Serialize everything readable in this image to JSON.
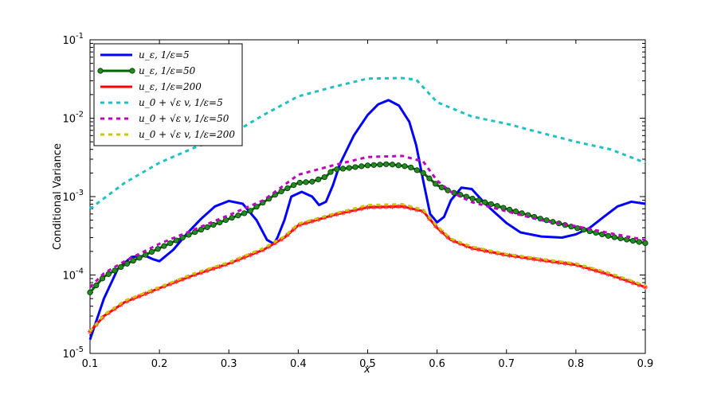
{
  "chart_data": {
    "type": "line",
    "xlabel": "x",
    "ylabel": "Conditional Variance",
    "xlim": [
      0.1,
      0.9
    ],
    "ylim": [
      1e-05,
      0.1
    ],
    "yscale": "log",
    "legend_position": "top-left",
    "x_ticks": [
      "0.1",
      "0.2",
      "0.3",
      "0.4",
      "0.5",
      "0.6",
      "0.7",
      "0.8",
      "0.9"
    ],
    "y_ticks": [
      {
        "base": "10",
        "exp": "-5"
      },
      {
        "base": "10",
        "exp": "-4"
      },
      {
        "base": "10",
        "exp": "-3"
      },
      {
        "base": "10",
        "exp": "-2"
      },
      {
        "base": "10",
        "exp": "-1"
      }
    ],
    "series": [
      {
        "name": "u_ε, 1/ε=5",
        "color": "#0000ff",
        "style": "solid",
        "marker": "none",
        "points": [
          [
            0.1,
            1.5e-05
          ],
          [
            0.12,
            5e-05
          ],
          [
            0.14,
            0.00012
          ],
          [
            0.16,
            0.00017
          ],
          [
            0.18,
            0.000175
          ],
          [
            0.19,
            0.00016
          ],
          [
            0.2,
            0.00015
          ],
          [
            0.22,
            0.00021
          ],
          [
            0.24,
            0.00034
          ],
          [
            0.26,
            0.00052
          ],
          [
            0.28,
            0.00075
          ],
          [
            0.3,
            0.00088
          ],
          [
            0.32,
            0.00081
          ],
          [
            0.34,
            0.0005
          ],
          [
            0.355,
            0.00028
          ],
          [
            0.365,
            0.00025
          ],
          [
            0.37,
            0.0003
          ],
          [
            0.38,
            0.0005
          ],
          [
            0.39,
            0.001
          ],
          [
            0.405,
            0.00115
          ],
          [
            0.42,
            0.001
          ],
          [
            0.43,
            0.00078
          ],
          [
            0.44,
            0.00086
          ],
          [
            0.45,
            0.0014
          ],
          [
            0.46,
            0.0026
          ],
          [
            0.48,
            0.006
          ],
          [
            0.5,
            0.011
          ],
          [
            0.515,
            0.015
          ],
          [
            0.53,
            0.017
          ],
          [
            0.545,
            0.0145
          ],
          [
            0.56,
            0.009
          ],
          [
            0.57,
            0.0045
          ],
          [
            0.58,
            0.0016
          ],
          [
            0.59,
            0.0006
          ],
          [
            0.6,
            0.00047
          ],
          [
            0.61,
            0.00055
          ],
          [
            0.62,
            0.0009
          ],
          [
            0.635,
            0.0013
          ],
          [
            0.65,
            0.00125
          ],
          [
            0.67,
            0.0008
          ],
          [
            0.7,
            0.00046
          ],
          [
            0.72,
            0.00035
          ],
          [
            0.75,
            0.00031
          ],
          [
            0.78,
            0.0003
          ],
          [
            0.8,
            0.00033
          ],
          [
            0.82,
            0.0004
          ],
          [
            0.84,
            0.00055
          ],
          [
            0.86,
            0.00075
          ],
          [
            0.88,
            0.00086
          ],
          [
            0.9,
            0.00081
          ]
        ]
      },
      {
        "name": "u_ε, 1/ε=50",
        "color": "#006400",
        "style": "solid",
        "marker": "circle",
        "points": [
          [
            0.1,
            6e-05
          ],
          [
            0.12,
            9.5e-05
          ],
          [
            0.15,
            0.000135
          ],
          [
            0.2,
            0.00022
          ],
          [
            0.25,
            0.00035
          ],
          [
            0.3,
            0.00052
          ],
          [
            0.33,
            0.00065
          ],
          [
            0.35,
            0.00085
          ],
          [
            0.37,
            0.0011
          ],
          [
            0.4,
            0.0015
          ],
          [
            0.42,
            0.00155
          ],
          [
            0.44,
            0.0018
          ],
          [
            0.45,
            0.0022
          ],
          [
            0.47,
            0.0023
          ],
          [
            0.5,
            0.0025
          ],
          [
            0.53,
            0.0026
          ],
          [
            0.56,
            0.0024
          ],
          [
            0.58,
            0.002
          ],
          [
            0.6,
            0.0014
          ],
          [
            0.62,
            0.00115
          ],
          [
            0.65,
            0.00095
          ],
          [
            0.7,
            0.0007
          ],
          [
            0.75,
            0.00052
          ],
          [
            0.8,
            0.0004
          ],
          [
            0.85,
            0.00031
          ],
          [
            0.9,
            0.000255
          ]
        ]
      },
      {
        "name": "u_ε, 1/ε=200",
        "color": "#ff0000",
        "style": "solid",
        "marker": "star",
        "points": [
          [
            0.1,
            1.9e-05
          ],
          [
            0.12,
            3e-05
          ],
          [
            0.15,
            4.5e-05
          ],
          [
            0.2,
            6.8e-05
          ],
          [
            0.25,
            0.0001
          ],
          [
            0.3,
            0.00014
          ],
          [
            0.35,
            0.00021
          ],
          [
            0.38,
            0.0003
          ],
          [
            0.4,
            0.00043
          ],
          [
            0.45,
            0.00058
          ],
          [
            0.5,
            0.00073
          ],
          [
            0.55,
            0.00075
          ],
          [
            0.58,
            0.00065
          ],
          [
            0.6,
            0.0004
          ],
          [
            0.62,
            0.00028
          ],
          [
            0.65,
            0.00022
          ],
          [
            0.7,
            0.00018
          ],
          [
            0.75,
            0.000155
          ],
          [
            0.8,
            0.000135
          ],
          [
            0.85,
            0.0001
          ],
          [
            0.9,
            7e-05
          ]
        ]
      },
      {
        "name": "u_0 + √ε v, 1/ε=5",
        "color": "#20c0c0",
        "style": "dashed",
        "marker": "none",
        "points": [
          [
            0.1,
            0.0007
          ],
          [
            0.15,
            0.0015
          ],
          [
            0.2,
            0.0027
          ],
          [
            0.25,
            0.0042
          ],
          [
            0.3,
            0.006
          ],
          [
            0.35,
            0.011
          ],
          [
            0.4,
            0.019
          ],
          [
            0.45,
            0.025
          ],
          [
            0.5,
            0.032
          ],
          [
            0.55,
            0.0325
          ],
          [
            0.57,
            0.031
          ],
          [
            0.6,
            0.016
          ],
          [
            0.65,
            0.0105
          ],
          [
            0.7,
            0.0085
          ],
          [
            0.75,
            0.0065
          ],
          [
            0.8,
            0.005
          ],
          [
            0.85,
            0.004
          ],
          [
            0.9,
            0.0027
          ]
        ]
      },
      {
        "name": "u_0 + √ε v, 1/ε=50",
        "color": "#c000c0",
        "style": "dashed",
        "marker": "none",
        "points": [
          [
            0.1,
            7e-05
          ],
          [
            0.12,
            0.000105
          ],
          [
            0.15,
            0.00015
          ],
          [
            0.2,
            0.00025
          ],
          [
            0.25,
            0.00038
          ],
          [
            0.3,
            0.00058
          ],
          [
            0.35,
            0.0009
          ],
          [
            0.4,
            0.0019
          ],
          [
            0.45,
            0.0025
          ],
          [
            0.5,
            0.0032
          ],
          [
            0.55,
            0.0033
          ],
          [
            0.58,
            0.0028
          ],
          [
            0.6,
            0.0016
          ],
          [
            0.62,
            0.00115
          ],
          [
            0.65,
            0.00085
          ],
          [
            0.7,
            0.00065
          ],
          [
            0.75,
            0.0005
          ],
          [
            0.8,
            0.00042
          ],
          [
            0.85,
            0.00034
          ],
          [
            0.9,
            0.00028
          ]
        ]
      },
      {
        "name": "u_0 + √ε v, 1/ε=200",
        "color": "#c8c800",
        "style": "dashed",
        "marker": "none",
        "points": [
          [
            0.1,
            1.9e-05
          ],
          [
            0.12,
            3.1e-05
          ],
          [
            0.15,
            4.7e-05
          ],
          [
            0.2,
            7e-05
          ],
          [
            0.25,
            0.000105
          ],
          [
            0.3,
            0.000145
          ],
          [
            0.35,
            0.00022
          ],
          [
            0.38,
            0.00031
          ],
          [
            0.4,
            0.00045
          ],
          [
            0.45,
            0.0006
          ],
          [
            0.5,
            0.00078
          ],
          [
            0.55,
            0.0008
          ],
          [
            0.58,
            0.00068
          ],
          [
            0.6,
            0.00042
          ],
          [
            0.62,
            0.00029
          ],
          [
            0.65,
            0.00023
          ],
          [
            0.7,
            0.000185
          ],
          [
            0.75,
            0.00016
          ],
          [
            0.8,
            0.00014
          ],
          [
            0.85,
            0.000105
          ],
          [
            0.9,
            7.3e-05
          ]
        ]
      }
    ]
  }
}
